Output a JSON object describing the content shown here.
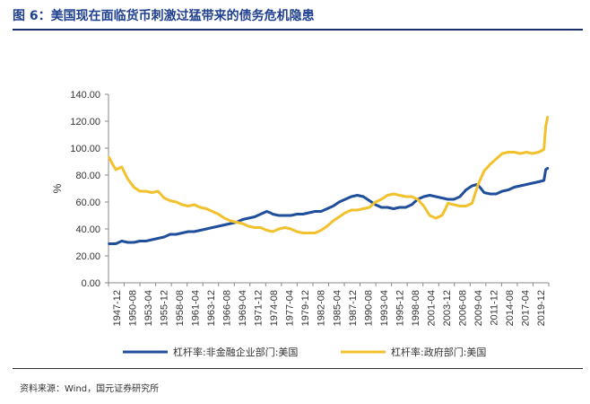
{
  "header": {
    "title": "图 6：美国现在面临货币刺激过猛带来的债务危机隐患"
  },
  "footer": {
    "source": "资料来源：Wind，国元证券研究所"
  },
  "chart_data": {
    "type": "line",
    "title": "",
    "xlabel": "",
    "ylabel": "%",
    "ylim": [
      0,
      140
    ],
    "yticks": [
      0,
      20,
      40,
      60,
      80,
      100,
      120,
      140
    ],
    "ytick_labels": [
      "0.00",
      "20.00",
      "40.00",
      "60.00",
      "80.00",
      "100.00",
      "120.00",
      "140.00"
    ],
    "xlim": [
      1947.8,
      2020.7
    ],
    "x_tick_labels": [
      "1947-12",
      "1950-08",
      "1953-04",
      "1955-12",
      "1958-08",
      "1961-04",
      "1963-12",
      "1966-08",
      "1969-04",
      "1971-12",
      "1974-08",
      "1977-04",
      "1979-12",
      "1982-08",
      "1985-04",
      "1987-12",
      "1990-08",
      "1993-04",
      "1995-12",
      "1998-08",
      "2001-04",
      "2003-12",
      "2006-08",
      "2009-04",
      "2011-12",
      "2014-08",
      "2017-04",
      "2019-12"
    ],
    "grid": false,
    "legend_position": "bottom",
    "series": [
      {
        "name": "杠杆率:非金融企业部门:美国",
        "color": "#1f4e9b",
        "x": [
          1947.9,
          1949,
          1950,
          1951,
          1952,
          1953,
          1954,
          1955,
          1956,
          1957,
          1958,
          1959,
          1960,
          1961,
          1962,
          1963,
          1964,
          1965,
          1966,
          1967,
          1968,
          1969,
          1970,
          1971,
          1972,
          1973,
          1974,
          1974.6,
          1975,
          1976,
          1977,
          1978,
          1979,
          1980,
          1981,
          1982,
          1983,
          1984,
          1985,
          1986,
          1987,
          1988,
          1989,
          1990,
          1991,
          1992,
          1993,
          1994,
          1995,
          1996,
          1997,
          1998,
          1999,
          2000,
          2001,
          2002,
          2003,
          2004,
          2005,
          2006,
          2007,
          2008,
          2008.8,
          2009.3,
          2010,
          2011,
          2012,
          2013,
          2014,
          2015,
          2016,
          2017,
          2018,
          2019,
          2019.9,
          2020.2,
          2020.5
        ],
        "values": [
          29,
          29,
          31,
          30,
          30,
          31,
          31,
          32,
          33,
          34,
          36,
          36,
          37,
          38,
          38,
          39,
          40,
          41,
          42,
          43,
          44,
          45,
          47,
          48,
          49,
          51,
          53,
          52,
          51,
          50,
          50,
          50,
          51,
          51,
          52,
          53,
          53,
          55,
          57,
          60,
          62,
          64,
          65,
          64,
          61,
          58,
          56,
          56,
          55,
          56,
          56,
          58,
          62,
          64,
          65,
          64,
          63,
          62,
          62,
          64,
          69,
          72,
          73,
          71,
          67,
          66,
          66,
          68,
          69,
          71,
          72,
          73,
          74,
          75,
          76,
          84,
          85
        ]
      },
      {
        "name": "杠杆率:政府部门:美国",
        "color": "#f2c12e",
        "x": [
          1947.9,
          1948.5,
          1949,
          1949.5,
          1950,
          1951,
          1952,
          1953,
          1954,
          1955,
          1956,
          1957,
          1958,
          1959,
          1960,
          1961,
          1962,
          1963,
          1964,
          1965,
          1966,
          1967,
          1968,
          1969,
          1970,
          1971,
          1972,
          1973,
          1974,
          1975,
          1976,
          1977,
          1978,
          1979,
          1980,
          1981,
          1982,
          1983,
          1984,
          1985,
          1986,
          1987,
          1988,
          1989,
          1990,
          1991,
          1992,
          1993,
          1994,
          1995,
          1996,
          1997,
          1998,
          1999,
          2000,
          2001,
          2002,
          2003,
          2003.5,
          2004,
          2005,
          2006,
          2007,
          2008,
          2008.5,
          2009,
          2010,
          2011,
          2012,
          2013,
          2014,
          2015,
          2016,
          2017,
          2018,
          2019,
          2019.9,
          2020.2,
          2020.5
        ],
        "values": [
          93,
          88,
          84,
          85,
          86,
          77,
          71,
          68,
          68,
          67,
          68,
          63,
          61,
          60,
          58,
          57,
          58,
          56,
          55,
          53,
          51,
          48,
          46,
          45,
          44,
          42,
          41,
          41,
          39,
          38,
          40,
          41,
          40,
          38,
          37,
          37,
          37,
          39,
          42,
          46,
          49,
          52,
          54,
          54,
          55,
          56,
          60,
          62,
          65,
          66,
          65,
          64,
          64,
          62,
          57,
          50,
          48,
          50,
          54,
          59,
          58,
          57,
          57,
          59,
          66,
          73,
          83,
          88,
          92,
          96,
          97,
          97,
          96,
          97,
          96,
          97,
          99,
          116,
          123
        ]
      }
    ]
  }
}
